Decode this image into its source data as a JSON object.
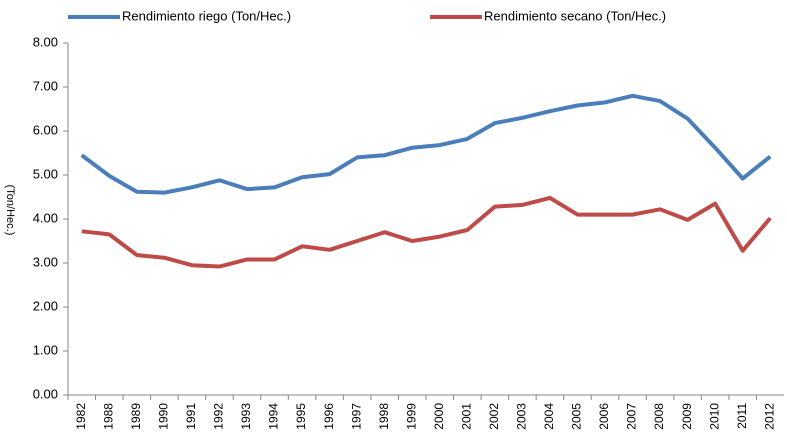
{
  "chart_data": {
    "type": "line",
    "y_label": "(Ton/Hec.)",
    "categories": [
      "1982",
      "1988",
      "1989",
      "1990",
      "1991",
      "1992",
      "1993",
      "1994",
      "1995",
      "1996",
      "1997",
      "1998",
      "1999",
      "2000",
      "2001",
      "2002",
      "2003",
      "2004",
      "2005",
      "2006",
      "2007",
      "2008",
      "2009",
      "2010",
      "2011",
      "2012"
    ],
    "series": [
      {
        "name": "Rendimiento riego (Ton/Hec.)",
        "color": "#4a7ebb",
        "values": [
          5.45,
          4.98,
          4.62,
          4.6,
          4.72,
          4.88,
          4.68,
          4.72,
          4.95,
          5.02,
          5.4,
          5.45,
          5.62,
          5.68,
          5.82,
          6.18,
          6.3,
          6.45,
          6.58,
          6.65,
          6.8,
          6.68,
          6.28,
          5.62,
          4.92,
          5.42
        ]
      },
      {
        "name": "Rendimiento secano (Ton/Hec.)",
        "color": "#be4b48",
        "values": [
          3.72,
          3.65,
          3.18,
          3.12,
          2.95,
          2.92,
          3.08,
          3.08,
          3.38,
          3.3,
          3.5,
          3.7,
          3.5,
          3.6,
          3.75,
          4.28,
          4.32,
          4.48,
          4.1,
          4.1,
          4.1,
          4.22,
          3.98,
          4.35,
          3.28,
          4.02
        ]
      }
    ],
    "ylim": [
      0,
      8
    ],
    "yticks": [
      {
        "value": 0,
        "label": "0.00"
      },
      {
        "value": 1,
        "label": "1.00"
      },
      {
        "value": 2,
        "label": "2.00"
      },
      {
        "value": 3,
        "label": "3.00"
      },
      {
        "value": 4,
        "label": "4.00"
      },
      {
        "value": 5,
        "label": "5.00"
      },
      {
        "value": 6,
        "label": "6.00"
      },
      {
        "value": 7,
        "label": "7.00"
      },
      {
        "value": 8,
        "label": "8.00"
      }
    ],
    "grid": false,
    "legend": "top"
  }
}
